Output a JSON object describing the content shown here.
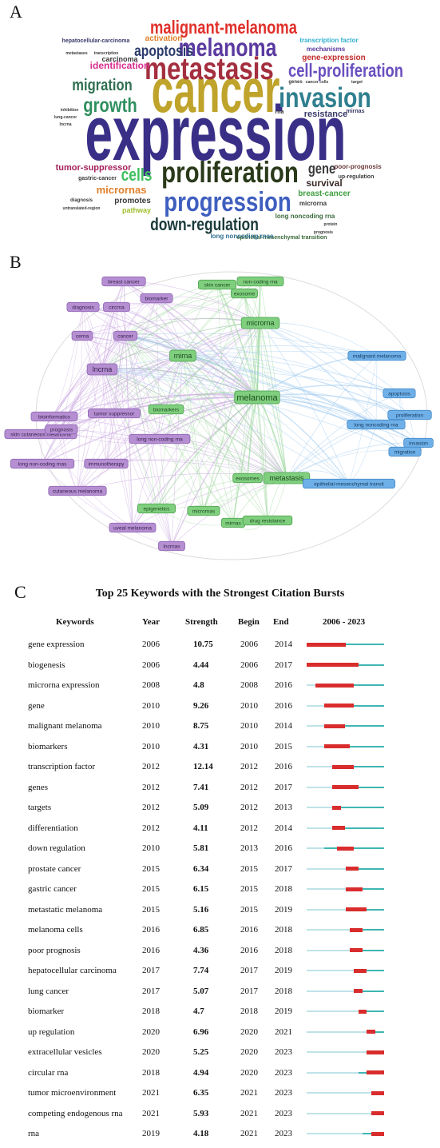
{
  "panels": {
    "a": "A",
    "b": "B",
    "c": "C"
  },
  "colors": {
    "burst": "#d92d2d",
    "active": "#3fb6b2",
    "inactive": "#bfe3e8"
  },
  "word_cloud": [
    {
      "text": "expression",
      "size": 72,
      "color": "#3a2f87",
      "weight": "bold"
    },
    {
      "text": "cancer",
      "size": 58,
      "color": "#bfa32a",
      "weight": "bold"
    },
    {
      "text": "metastasis",
      "size": 34,
      "color": "#a32f3f",
      "weight": "bold"
    },
    {
      "text": "invasion",
      "size": 31,
      "color": "#2f7f8f",
      "weight": "bold"
    },
    {
      "text": "proliferation",
      "size": 32,
      "color": "#2a3a1a",
      "weight": "bold"
    },
    {
      "text": "progression",
      "size": 30,
      "color": "#3f5fbf",
      "weight": "bold"
    },
    {
      "text": "malignant-melanoma",
      "size": 20,
      "color": "#e0302a",
      "weight": "bold"
    },
    {
      "text": "melanoma",
      "size": 27,
      "color": "#5a3a9f",
      "weight": "bold"
    },
    {
      "text": "cell-proliferation",
      "size": 20,
      "color": "#6a4fbf",
      "weight": "bold"
    },
    {
      "text": "growth",
      "size": 22,
      "color": "#2f8f5f",
      "weight": "bold"
    },
    {
      "text": "migration",
      "size": 18,
      "color": "#2f6f4f",
      "weight": "bold"
    },
    {
      "text": "apoptosis",
      "size": 17,
      "color": "#2a3a6a",
      "weight": "bold"
    },
    {
      "text": "down-regulation",
      "size": 19,
      "color": "#1a3a3a",
      "weight": "bold"
    },
    {
      "text": "cells",
      "size": 19,
      "color": "#3fbf5f",
      "weight": "bold"
    },
    {
      "text": "gene",
      "size": 16,
      "color": "#3a3a3a",
      "weight": "bold"
    },
    {
      "text": "micrornas",
      "size": 13,
      "color": "#e07f2a",
      "weight": "bold"
    },
    {
      "text": "identification",
      "size": 12,
      "color": "#d92d8f",
      "weight": "bold"
    },
    {
      "text": "tumor-suppressor",
      "size": 11,
      "color": "#a3205a",
      "weight": "bold"
    },
    {
      "text": "survival",
      "size": 12,
      "color": "#3a2a2a",
      "weight": "bold"
    },
    {
      "text": "breast-cancer",
      "size": 10,
      "color": "#3f9f3f",
      "weight": "bold"
    },
    {
      "text": "gene-expression",
      "size": 10,
      "color": "#c02a2a",
      "weight": "bold"
    },
    {
      "text": "resistance",
      "size": 11,
      "color": "#3a3a6a",
      "weight": "bold"
    },
    {
      "text": "promotes",
      "size": 10,
      "color": "#3a3a3a",
      "weight": "bold"
    },
    {
      "text": "pathway",
      "size": 9,
      "color": "#9fbf2f",
      "weight": "bold"
    },
    {
      "text": "activation",
      "size": 10,
      "color": "#e07f2a",
      "weight": "bold"
    },
    {
      "text": "carcinoma",
      "size": 9,
      "color": "#3a3a3a",
      "weight": "bold"
    },
    {
      "text": "mechanisms",
      "size": 8,
      "color": "#5a3a9f",
      "weight": "bold"
    },
    {
      "text": "transcription factor",
      "size": 8,
      "color": "#2fafcf",
      "weight": "bold"
    },
    {
      "text": "hepatocellular-carcinoma",
      "size": 7,
      "color": "#3a3a6a",
      "weight": "bold"
    },
    {
      "text": "microrna",
      "size": 8,
      "color": "#3a3a3a",
      "weight": "bold"
    },
    {
      "text": "long noncoding rna",
      "size": 8,
      "color": "#3a6a3a",
      "weight": "bold"
    },
    {
      "text": "poor-prognosis",
      "size": 8,
      "color": "#6a3a3a",
      "weight": "bold"
    },
    {
      "text": "up-regulation",
      "size": 7,
      "color": "#3a3a3a",
      "weight": "bold"
    },
    {
      "text": "epithelial-mesenchymal transition",
      "size": 7,
      "color": "#3a6a3a",
      "weight": "bold"
    },
    {
      "text": "long noncoding rnas",
      "size": 8,
      "color": "#2f6f8f",
      "weight": "bold"
    },
    {
      "text": "gastric-cancer",
      "size": 7,
      "color": "#3a3a3a",
      "weight": "bold"
    },
    {
      "text": "diagnosis",
      "size": 6,
      "color": "#3a3a3a",
      "weight": "bold"
    },
    {
      "text": "untranslated-region",
      "size": 5,
      "color": "#3a3a3a",
      "weight": "bold"
    },
    {
      "text": "rna",
      "size": 7,
      "color": "#3a3a3a",
      "weight": "bold"
    },
    {
      "text": "mirnas",
      "size": 7,
      "color": "#3a3a6a",
      "weight": "bold"
    },
    {
      "text": "genes",
      "size": 6,
      "color": "#3a3a3a",
      "weight": "bold"
    },
    {
      "text": "cancer cells",
      "size": 5,
      "color": "#3a3a3a",
      "weight": "bold"
    },
    {
      "text": "target",
      "size": 5,
      "color": "#3a3a3a",
      "weight": "bold"
    },
    {
      "text": "lung-cancer",
      "size": 5,
      "color": "#3a3a3a",
      "weight": "bold"
    },
    {
      "text": "lncrna",
      "size": 5,
      "color": "#3a3a3a",
      "weight": "bold"
    },
    {
      "text": "inhibition",
      "size": 5,
      "color": "#3a3a3a",
      "weight": "bold"
    },
    {
      "text": "prognosis",
      "size": 5,
      "color": "#3a3a3a",
      "weight": "bold"
    },
    {
      "text": "metastases",
      "size": 5,
      "color": "#3a3a3a",
      "weight": "bold"
    },
    {
      "text": "transcription",
      "size": 5,
      "color": "#3a3a3a",
      "weight": "bold"
    },
    {
      "text": "protein",
      "size": 5,
      "color": "#3a3a3a",
      "weight": "bold"
    }
  ],
  "network": {
    "nodes": [
      {
        "label": "breast cancer",
        "cluster": "purple"
      },
      {
        "label": "biomarker",
        "cluster": "purple"
      },
      {
        "label": "diagnosis",
        "cluster": "purple"
      },
      {
        "label": "circrna",
        "cluster": "purple"
      },
      {
        "label": "cerna",
        "cluster": "purple"
      },
      {
        "label": "cancer",
        "cluster": "purple"
      },
      {
        "label": "lncrna",
        "cluster": "purple"
      },
      {
        "label": "bioinformatics",
        "cluster": "purple"
      },
      {
        "label": "tumor suppressor",
        "cluster": "purple"
      },
      {
        "label": "skin cutaneous melanoma",
        "cluster": "purple"
      },
      {
        "label": "prognosis",
        "cluster": "purple"
      },
      {
        "label": "long non-coding rna",
        "cluster": "purple"
      },
      {
        "label": "long non-coding rnas",
        "cluster": "purple"
      },
      {
        "label": "immunotherapy",
        "cluster": "purple"
      },
      {
        "label": "cutaneous melanoma",
        "cluster": "purple"
      },
      {
        "label": "uveal melanoma",
        "cluster": "purple"
      },
      {
        "label": "lncrnas",
        "cluster": "purple"
      },
      {
        "label": "skin cancer",
        "cluster": "green"
      },
      {
        "label": "non-coding rna",
        "cluster": "green"
      },
      {
        "label": "exosome",
        "cluster": "green"
      },
      {
        "label": "microrna",
        "cluster": "green"
      },
      {
        "label": "mirna",
        "cluster": "green"
      },
      {
        "label": "melanoma",
        "cluster": "green"
      },
      {
        "label": "biomarkers",
        "cluster": "green"
      },
      {
        "label": "exosomes",
        "cluster": "green"
      },
      {
        "label": "metastasis",
        "cluster": "green"
      },
      {
        "label": "epigenetics",
        "cluster": "green"
      },
      {
        "label": "micrornas",
        "cluster": "green"
      },
      {
        "label": "mirnas",
        "cluster": "green"
      },
      {
        "label": "drug resistance",
        "cluster": "green"
      },
      {
        "label": "malignant melanoma",
        "cluster": "blue"
      },
      {
        "label": "apoptosis",
        "cluster": "blue"
      },
      {
        "label": "proliferation",
        "cluster": "blue"
      },
      {
        "label": "long noncoding rna",
        "cluster": "blue"
      },
      {
        "label": "invasion",
        "cluster": "blue"
      },
      {
        "label": "migration",
        "cluster": "blue"
      },
      {
        "label": "epithelial-mesenchymal transit",
        "cluster": "blue"
      }
    ],
    "cluster_colors": {
      "purple": {
        "fill": "#b58fd1",
        "stroke": "#8e62b3",
        "text": "#3a2050",
        "edge": "#c9a6e0"
      },
      "green": {
        "fill": "#7fcf7f",
        "stroke": "#4aa04a",
        "text": "#1e4a1e",
        "edge": "#9ed89e"
      },
      "blue": {
        "fill": "#6fb0e8",
        "stroke": "#3f85c6",
        "text": "#153a5f",
        "edge": "#9cc8ef"
      }
    }
  },
  "chart_data": {
    "type": "table",
    "title": "Top 25 Keywords with the Strongest Citation Bursts",
    "columns": [
      "Keywords",
      "Year",
      "Strength",
      "Begin",
      "End",
      "2006 - 2023"
    ],
    "range": [
      2006,
      2023
    ],
    "rows": [
      {
        "keyword": "gene expression",
        "year": 2006,
        "strength": "10.75",
        "begin": 2006,
        "end": 2014
      },
      {
        "keyword": "biogenesis",
        "year": 2006,
        "strength": "4.44",
        "begin": 2006,
        "end": 2017
      },
      {
        "keyword": "microrna expression",
        "year": 2008,
        "strength": "4.8",
        "begin": 2008,
        "end": 2016
      },
      {
        "keyword": "gene",
        "year": 2010,
        "strength": "9.26",
        "begin": 2010,
        "end": 2016
      },
      {
        "keyword": "malignant melanoma",
        "year": 2010,
        "strength": "8.75",
        "begin": 2010,
        "end": 2014
      },
      {
        "keyword": "biomarkers",
        "year": 2010,
        "strength": "4.31",
        "begin": 2010,
        "end": 2015
      },
      {
        "keyword": "transcription factor",
        "year": 2012,
        "strength": "12.14",
        "begin": 2012,
        "end": 2016
      },
      {
        "keyword": "genes",
        "year": 2012,
        "strength": "7.41",
        "begin": 2012,
        "end": 2017
      },
      {
        "keyword": "targets",
        "year": 2012,
        "strength": "5.09",
        "begin": 2012,
        "end": 2013
      },
      {
        "keyword": "differentiation",
        "year": 2012,
        "strength": "4.11",
        "begin": 2012,
        "end": 2014
      },
      {
        "keyword": "down regulation",
        "year": 2010,
        "strength": "5.81",
        "begin": 2013,
        "end": 2016
      },
      {
        "keyword": "prostate cancer",
        "year": 2015,
        "strength": "6.34",
        "begin": 2015,
        "end": 2017
      },
      {
        "keyword": "gastric cancer",
        "year": 2015,
        "strength": "6.15",
        "begin": 2015,
        "end": 2018
      },
      {
        "keyword": "metastatic melanoma",
        "year": 2015,
        "strength": "5.16",
        "begin": 2015,
        "end": 2019
      },
      {
        "keyword": "melanoma cells",
        "year": 2016,
        "strength": "6.85",
        "begin": 2016,
        "end": 2018
      },
      {
        "keyword": "poor prognosis",
        "year": 2016,
        "strength": "4.36",
        "begin": 2016,
        "end": 2018
      },
      {
        "keyword": "hepatocellular carcinoma",
        "year": 2017,
        "strength": "7.74",
        "begin": 2017,
        "end": 2019
      },
      {
        "keyword": "lung cancer",
        "year": 2017,
        "strength": "5.07",
        "begin": 2017,
        "end": 2018
      },
      {
        "keyword": "biomarker",
        "year": 2018,
        "strength": "4.7",
        "begin": 2018,
        "end": 2019
      },
      {
        "keyword": "up regulation",
        "year": 2020,
        "strength": "6.96",
        "begin": 2020,
        "end": 2021
      },
      {
        "keyword": "extracellular vesicles",
        "year": 2020,
        "strength": "5.25",
        "begin": 2020,
        "end": 2023
      },
      {
        "keyword": "circular rna",
        "year": 2018,
        "strength": "4.94",
        "begin": 2020,
        "end": 2023
      },
      {
        "keyword": "tumor microenvironment",
        "year": 2021,
        "strength": "6.35",
        "begin": 2021,
        "end": 2023
      },
      {
        "keyword": "competing endogenous rna",
        "year": 2021,
        "strength": "5.93",
        "begin": 2021,
        "end": 2023
      },
      {
        "keyword": "rna",
        "year": 2019,
        "strength": "4.18",
        "begin": 2021,
        "end": 2023
      }
    ]
  }
}
